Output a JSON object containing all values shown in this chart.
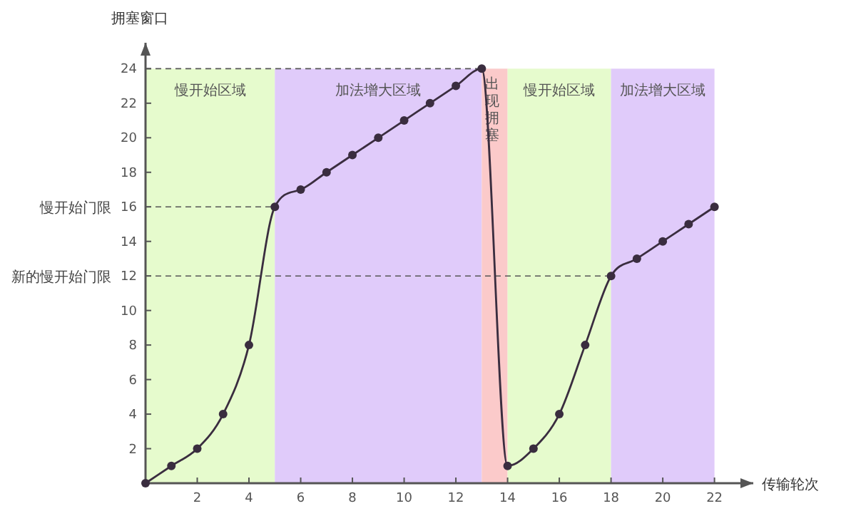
{
  "chart_data": {
    "type": "line",
    "xlabel": "传输轮次",
    "ylabel": "拥塞窗口",
    "x": [
      0,
      1,
      2,
      3,
      4,
      5,
      6,
      7,
      8,
      9,
      10,
      11,
      12,
      13,
      14,
      15,
      16,
      17,
      18,
      19,
      20,
      21,
      22
    ],
    "series": [
      {
        "color": "#3a2d3f",
        "values": [
          0,
          1,
          2,
          4,
          8,
          16,
          17,
          18,
          19,
          20,
          21,
          22,
          23,
          24,
          1,
          2,
          4,
          8,
          12,
          13,
          14,
          15,
          16
        ]
      }
    ],
    "xlim": [
      0,
      23.5
    ],
    "ylim": [
      0,
      25.5
    ],
    "xticks": [
      2,
      4,
      6,
      8,
      10,
      12,
      14,
      16,
      18,
      20,
      22
    ],
    "yticks": [
      2,
      4,
      6,
      8,
      10,
      12,
      14,
      16,
      18,
      20,
      22,
      24
    ],
    "marker": "circle",
    "line_style": "solid",
    "ref_lines": [
      {
        "axis": "y",
        "value": 24,
        "line_style": "dashed",
        "color": "#555555"
      },
      {
        "axis": "y",
        "value": 16,
        "label": "慢开始门限",
        "line_style": "dashed",
        "color": "#555555"
      },
      {
        "axis": "y",
        "value": 12,
        "label": "新的慢开始门限",
        "line_style": "dashed",
        "color": "#555555"
      }
    ],
    "bands": [
      {
        "axis": "x",
        "from": 0,
        "to": 5,
        "label": "慢开始区域",
        "color": "#e6fbcd"
      },
      {
        "axis": "x",
        "from": 5,
        "to": 13,
        "label": "加法增大区域",
        "color": "#e0cbfa"
      },
      {
        "axis": "x",
        "from": 13,
        "to": 14,
        "label": "出现拥塞",
        "color": "#fbcaca"
      },
      {
        "axis": "x",
        "from": 14,
        "to": 18,
        "label": "慢开始区域",
        "color": "#e6fbcd"
      },
      {
        "axis": "x",
        "from": 18,
        "to": 22,
        "label": "加法增大区域",
        "color": "#e0cbfa"
      }
    ]
  }
}
